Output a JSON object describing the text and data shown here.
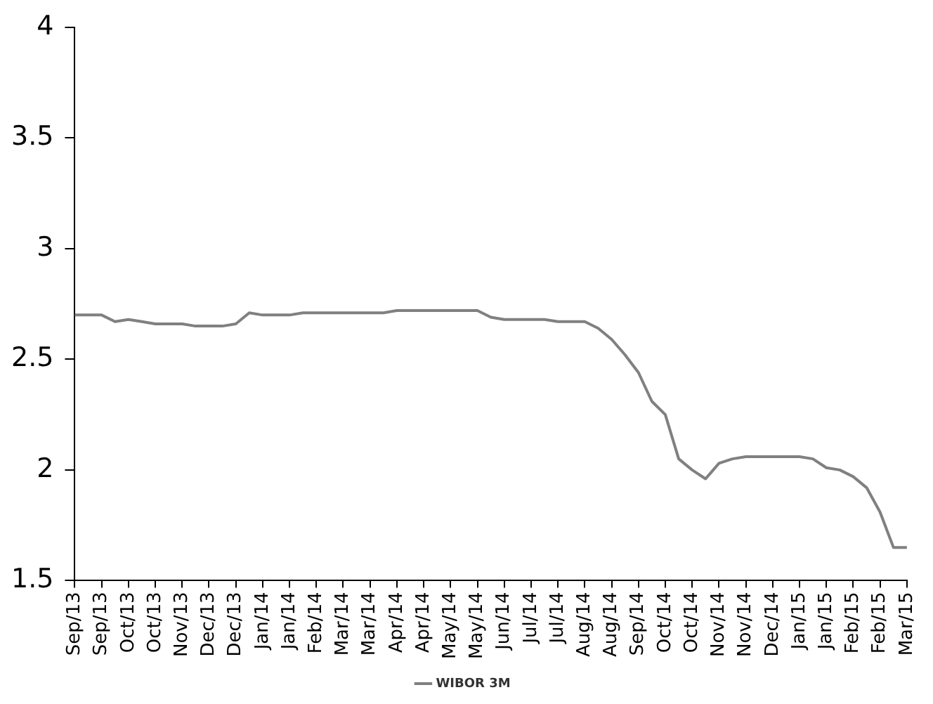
{
  "chart_data": {
    "type": "line",
    "categories": [
      "Sep/13",
      null,
      "Sep/13",
      null,
      "Oct/13",
      null,
      "Oct/13",
      null,
      "Nov/13",
      null,
      "Dec/13",
      null,
      "Dec/13",
      null,
      "Jan/14",
      null,
      "Jan/14",
      null,
      "Feb/14",
      null,
      "Mar/14",
      null,
      "Mar/14",
      null,
      "Apr/14",
      null,
      "Apr/14",
      null,
      "May/14",
      null,
      "May/14",
      null,
      "Jun/14",
      null,
      "Jul/14",
      null,
      "Jul/14",
      null,
      "Aug/14",
      null,
      "Aug/14",
      null,
      "Sep/14",
      null,
      "Oct/14",
      null,
      "Oct/14",
      null,
      "Nov/14",
      null,
      "Nov/14",
      null,
      "Dec/14",
      null,
      "Jan/15",
      null,
      "Jan/15",
      null,
      "Feb/15",
      null,
      "Feb/15",
      null,
      "Mar/15"
    ],
    "series": [
      {
        "name": "WIBOR 3M",
        "color": "#808080",
        "values": [
          2.7,
          2.7,
          2.7,
          2.67,
          2.68,
          2.67,
          2.66,
          2.66,
          2.66,
          2.65,
          2.65,
          2.65,
          2.66,
          2.71,
          2.7,
          2.7,
          2.7,
          2.71,
          2.71,
          2.71,
          2.71,
          2.71,
          2.71,
          2.71,
          2.72,
          2.72,
          2.72,
          2.72,
          2.72,
          2.72,
          2.72,
          2.69,
          2.68,
          2.68,
          2.68,
          2.68,
          2.67,
          2.67,
          2.67,
          2.64,
          2.59,
          2.52,
          2.44,
          2.31,
          2.25,
          2.05,
          2.0,
          1.96,
          2.03,
          2.05,
          2.06,
          2.06,
          2.06,
          2.06,
          2.06,
          2.05,
          2.01,
          2.0,
          1.97,
          1.92,
          1.81,
          1.65,
          1.65
        ]
      }
    ],
    "ylim": [
      1.5,
      4
    ],
    "yticks": [
      1.5,
      2,
      2.5,
      3,
      3.5,
      4
    ],
    "grid": false,
    "legend": "bottom",
    "line_style": "solid"
  }
}
